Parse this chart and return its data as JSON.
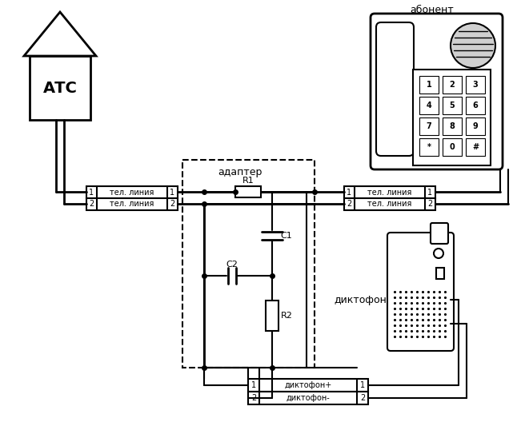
{
  "bg_color": "#ffffff",
  "line_color": "#000000",
  "fig_width": 6.61,
  "fig_height": 5.28,
  "dpi": 100,
  "atc_label": "АТС",
  "abonent_label": "абонент",
  "adapter_label": "адаптер",
  "diktofon_label": "диктофон",
  "r1_label": "R1",
  "r2_label": "R2",
  "c1_label": "C1",
  "c2_label": "C2",
  "tel_line1": "тел. линия",
  "tel_line2": "тел. линия",
  "diktofon_plus": "диктофон+",
  "diktofon_minus": "диктофон-"
}
